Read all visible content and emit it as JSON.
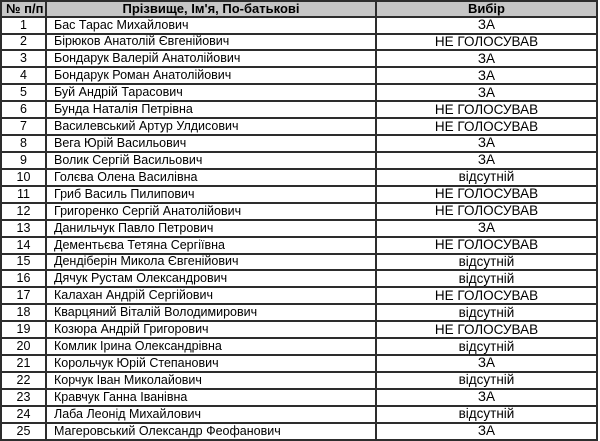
{
  "table": {
    "headers": [
      "№ п/п",
      "Прізвище, Ім'я, По-батькові",
      "Вибір"
    ],
    "rows": [
      {
        "num": "1",
        "name": "Бас Тарас Михайлович",
        "vote": "ЗА"
      },
      {
        "num": "2",
        "name": "Бірюков Анатолій Євгенійович",
        "vote": "НЕ ГОЛОСУВАВ"
      },
      {
        "num": "3",
        "name": "Бондарук Валерій Анатолійович",
        "vote": "ЗА"
      },
      {
        "num": "4",
        "name": "Бондарук Роман Анатолійович",
        "vote": "ЗА"
      },
      {
        "num": "5",
        "name": "Буй Андрій Тарасович",
        "vote": "ЗА"
      },
      {
        "num": "6",
        "name": "Бунда Наталія  Петрівна",
        "vote": "НЕ ГОЛОСУВАВ"
      },
      {
        "num": "7",
        "name": "Василевський Артур Улдисович",
        "vote": "НЕ ГОЛОСУВАВ"
      },
      {
        "num": "8",
        "name": "Вега Юрій Васильович",
        "vote": "ЗА"
      },
      {
        "num": "9",
        "name": "Волик Сергій Васильович",
        "vote": "ЗА"
      },
      {
        "num": "10",
        "name": "Голєва Олена Василівна",
        "vote": "відсутній"
      },
      {
        "num": "11",
        "name": "Гриб Василь Пилипович",
        "vote": "НЕ ГОЛОСУВАВ"
      },
      {
        "num": "12",
        "name": "Григоренко Сергій Анатолійович",
        "vote": "НЕ ГОЛОСУВАВ"
      },
      {
        "num": "13",
        "name": "Данильчук Павло Петрович",
        "vote": "ЗА"
      },
      {
        "num": "14",
        "name": "Дементьєва Тетяна  Сергіївна",
        "vote": "НЕ ГОЛОСУВАВ"
      },
      {
        "num": "15",
        "name": "Дендіберін Микола Євгенійович",
        "vote": "відсутній"
      },
      {
        "num": "16",
        "name": "Дячук Рустам Олександрович",
        "vote": "відсутній"
      },
      {
        "num": "17",
        "name": "Калахан Андрій Сергійович",
        "vote": "НЕ ГОЛОСУВАВ"
      },
      {
        "num": "18",
        "name": "Кварцяний Віталій Володимирович",
        "vote": "відсутній"
      },
      {
        "num": "19",
        "name": "Козюра Андрій Григорович",
        "vote": "НЕ ГОЛОСУВАВ"
      },
      {
        "num": "20",
        "name": "Комлик Ірина Олександрівна",
        "vote": "відсутній"
      },
      {
        "num": "21",
        "name": "Корольчук Юрій Степанович",
        "vote": "ЗА"
      },
      {
        "num": "22",
        "name": "Корчук Іван Миколайович",
        "vote": "відсутній"
      },
      {
        "num": "23",
        "name": "Кравчук Ганна Іванівна",
        "vote": "ЗА"
      },
      {
        "num": "24",
        "name": "Лаба Леонід Михайлович",
        "vote": "відсутній"
      },
      {
        "num": "25",
        "name": "Магеровський Олександр Феофанович",
        "vote": "ЗА"
      }
    ]
  },
  "colors": {
    "header_bg": "#c6c6c6",
    "border": "#2d2d2d",
    "text": "#000000",
    "page_bg": "#ffffff"
  }
}
